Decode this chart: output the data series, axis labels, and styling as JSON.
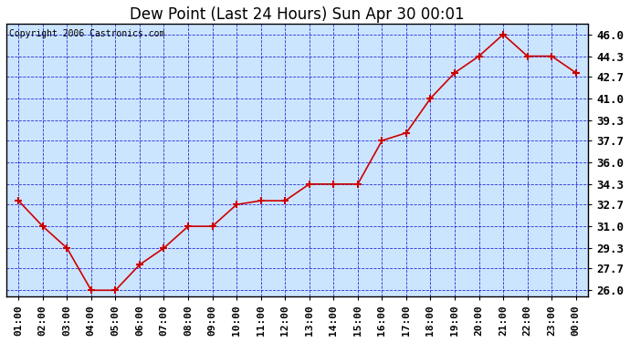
{
  "title": "Dew Point (Last 24 Hours) Sun Apr 30 00:01",
  "copyright": "Copyright 2006 Castronics.com",
  "x_labels": [
    "01:00",
    "02:00",
    "03:00",
    "04:00",
    "05:00",
    "06:00",
    "07:00",
    "08:00",
    "09:00",
    "10:00",
    "11:00",
    "12:00",
    "13:00",
    "14:00",
    "15:00",
    "16:00",
    "17:00",
    "18:00",
    "19:00",
    "20:00",
    "21:00",
    "22:00",
    "23:00",
    "00:00"
  ],
  "y_values": [
    33.0,
    31.0,
    29.3,
    26.0,
    26.0,
    28.0,
    29.3,
    31.0,
    31.0,
    32.7,
    33.0,
    33.0,
    34.3,
    34.3,
    34.3,
    37.7,
    38.3,
    41.0,
    43.0,
    44.3,
    46.0,
    44.3,
    44.3,
    43.0
  ],
  "y_ticks": [
    26.0,
    27.7,
    29.3,
    31.0,
    32.7,
    34.3,
    36.0,
    37.7,
    39.3,
    41.0,
    42.7,
    44.3,
    46.0
  ],
  "ylim": [
    25.5,
    46.8
  ],
  "line_color": "#cc0000",
  "marker": "+",
  "marker_color": "#cc0000",
  "bg_color": "#cce5ff",
  "grid_color": "#0000cc",
  "border_color": "#000000",
  "title_fontsize": 12,
  "copyright_fontsize": 7,
  "tick_fontsize": 8,
  "ytick_fontsize": 9
}
